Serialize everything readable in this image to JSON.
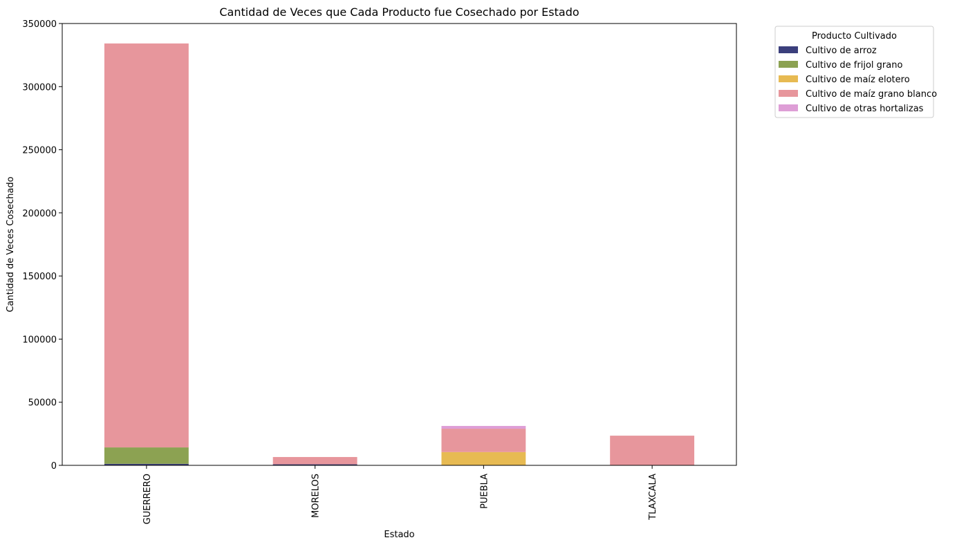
{
  "chart_data": {
    "type": "bar",
    "stacked": true,
    "title": "Cantidad de Veces que Cada Producto fue Cosechado por Estado",
    "xlabel": "Estado",
    "ylabel": "Cantidad de Veces Cosechado",
    "categories": [
      "GUERRERO",
      "MORELOS",
      "PUEBLA",
      "TLAXCALA"
    ],
    "ylim": [
      0,
      350000
    ],
    "yticks": [
      0,
      50000,
      100000,
      150000,
      200000,
      250000,
      300000,
      350000
    ],
    "ytick_labels": [
      "0",
      "50000",
      "100000",
      "150000",
      "200000",
      "250000",
      "300000",
      "350000"
    ],
    "grid": false,
    "legend": {
      "title": "Producto Cultivado",
      "placement": "outside-upper-right"
    },
    "series": [
      {
        "name": "Cultivo de arroz",
        "color": "#3b3f7c",
        "values": [
          1200,
          800,
          0,
          0
        ]
      },
      {
        "name": "Cultivo de frijol grano",
        "color": "#8ca252",
        "values": [
          13000,
          0,
          0,
          0
        ]
      },
      {
        "name": "Cultivo de maíz elotero",
        "color": "#e7ba52",
        "values": [
          0,
          0,
          10500,
          0
        ]
      },
      {
        "name": "Cultivo de maíz grano blanco",
        "color": "#e7969c",
        "values": [
          320000,
          5800,
          18500,
          23500
        ]
      },
      {
        "name": "Cultivo de otras hortalizas",
        "color": "#de9ed6",
        "values": [
          0,
          0,
          2200,
          0
        ]
      }
    ]
  }
}
